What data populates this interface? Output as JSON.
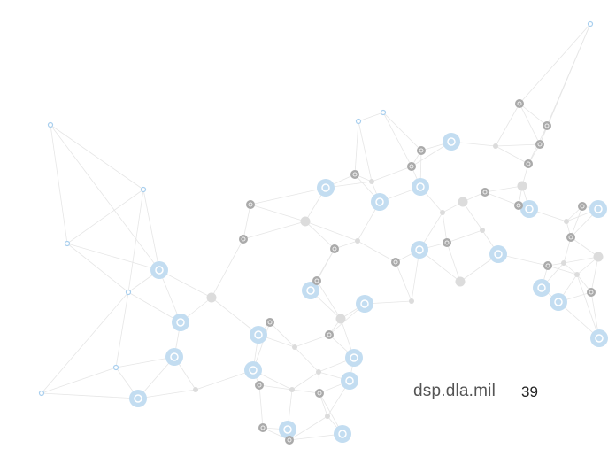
{
  "footer": {
    "url": "dsp.dla.mil",
    "page_number": "39"
  }
}
